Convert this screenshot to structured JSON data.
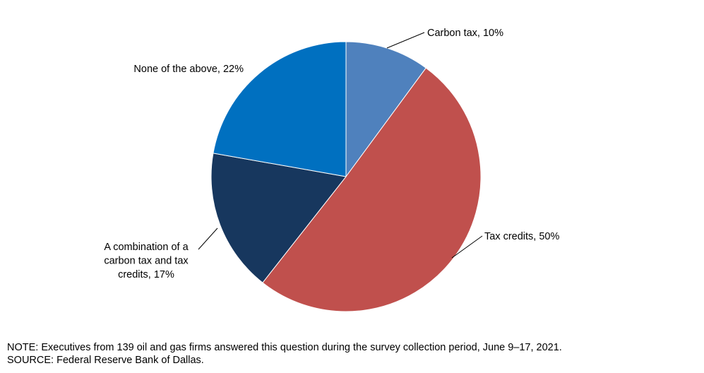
{
  "chart_data": {
    "type": "pie",
    "title": "",
    "slices": [
      {
        "label": "Carbon tax, 10%",
        "value": 10,
        "color": "#4F81BD"
      },
      {
        "label": "Tax credits, 50%",
        "value": 50,
        "color": "#C0504D"
      },
      {
        "label": "A combination of a carbon tax and tax credits, 17%",
        "label_lines": [
          "A combination  of a",
          "carbon tax and tax",
          "credits, 17%"
        ],
        "value": 17,
        "color": "#17375E"
      },
      {
        "label": "None of the above, 22%",
        "value": 22,
        "color": "#0070C0"
      }
    ],
    "start": "12 o'clock",
    "direction": "clockwise"
  },
  "notes": {
    "note": "NOTE:  Executives  from  139  oil  and  gas  firms  answered  this  question  during  the  survey  collection  period,  June  9–17,  2021.",
    "source": "SOURCE:  Federal  Reserve  Bank  of  Dallas."
  }
}
